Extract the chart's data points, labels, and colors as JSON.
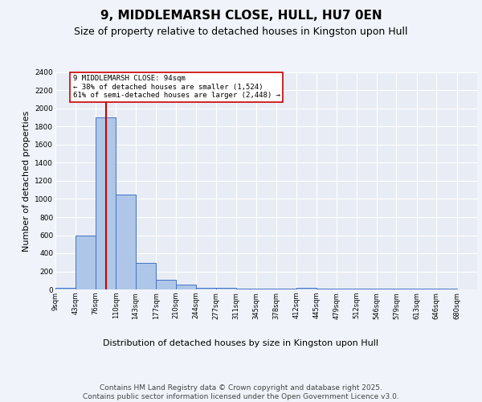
{
  "title": "9, MIDDLEMARSH CLOSE, HULL, HU7 0EN",
  "subtitle": "Size of property relative to detached houses in Kingston upon Hull",
  "xlabel": "Distribution of detached houses by size in Kingston upon Hull",
  "ylabel": "Number of detached properties",
  "bar_labels": [
    "9sqm",
    "43sqm",
    "76sqm",
    "110sqm",
    "143sqm",
    "177sqm",
    "210sqm",
    "244sqm",
    "277sqm",
    "311sqm",
    "345sqm",
    "378sqm",
    "412sqm",
    "445sqm",
    "479sqm",
    "512sqm",
    "546sqm",
    "579sqm",
    "613sqm",
    "646sqm",
    "680sqm"
  ],
  "bar_edges": [
    9,
    43,
    76,
    110,
    143,
    177,
    210,
    244,
    277,
    311,
    345,
    378,
    412,
    445,
    479,
    512,
    546,
    579,
    613,
    646,
    680
  ],
  "bar_heights": [
    20,
    600,
    1900,
    1050,
    290,
    110,
    50,
    20,
    20,
    5,
    5,
    5,
    20,
    5,
    5,
    5,
    5,
    5,
    5,
    5,
    0
  ],
  "bar_color": "#aec6e8",
  "bar_edge_color": "#4472c4",
  "property_line_x": 94,
  "property_line_color": "#cc0000",
  "annotation_text": "9 MIDDLEMARSH CLOSE: 94sqm\n← 38% of detached houses are smaller (1,524)\n61% of semi-detached houses are larger (2,448) →",
  "annotation_box_color": "#ffffff",
  "annotation_box_edge_color": "#cc0000",
  "ylim": [
    0,
    2400
  ],
  "yticks": [
    0,
    200,
    400,
    600,
    800,
    1000,
    1200,
    1400,
    1600,
    1800,
    2000,
    2200,
    2400
  ],
  "bg_color": "#e8edf5",
  "grid_color": "#ffffff",
  "fig_bg_color": "#f0f4fa",
  "footer": "Contains HM Land Registry data © Crown copyright and database right 2025.\nContains public sector information licensed under the Open Government Licence v3.0.",
  "title_fontsize": 11,
  "subtitle_fontsize": 9,
  "label_fontsize": 8,
  "tick_fontsize": 6,
  "footer_fontsize": 6.5
}
